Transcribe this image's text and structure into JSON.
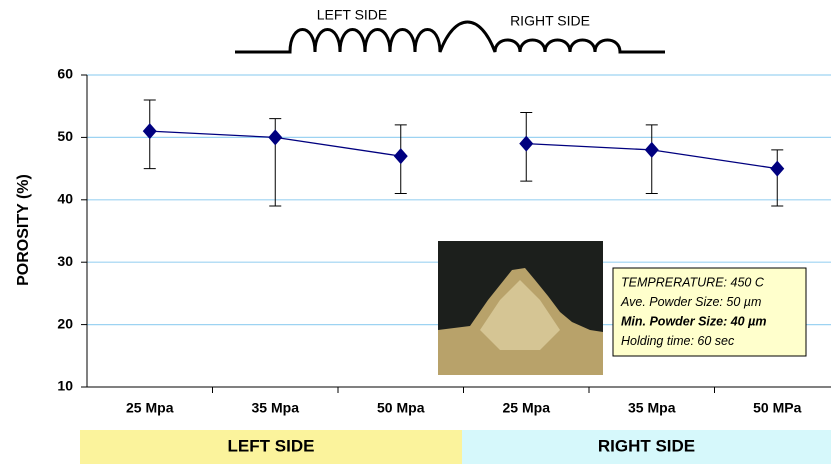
{
  "chart_data": {
    "type": "line",
    "ylabel": "POROSITY (%)",
    "categories": [
      "25 Mpa",
      "35  Mpa",
      "50  Mpa",
      "25  Mpa",
      "35  Mpa",
      "50 MPa"
    ],
    "values": [
      51,
      50,
      47,
      49,
      48,
      45
    ],
    "error_plus": [
      5,
      3,
      5,
      5,
      4,
      3
    ],
    "error_minus": [
      6,
      11,
      6,
      6,
      7,
      6
    ],
    "color": "#00007f",
    "ylim": [
      10,
      60
    ],
    "yticks": [
      10,
      20,
      30,
      40,
      50,
      60
    ],
    "grid": true,
    "groups": [
      {
        "label": "LEFT SIDE",
        "color": "#fbf39c"
      },
      {
        "label": "RIGHT SIDE",
        "color": "#d6f8fb"
      }
    ],
    "schematic_labels": [
      "LEFT SIDE",
      "RIGHT SIDE"
    ],
    "annotation": [
      "TEMPRERATURE: 450 C",
      "Ave. Powder Size: 50 µm",
      "Min. Powder Size: 40 µm",
      "Holding time: 60 sec"
    ]
  }
}
